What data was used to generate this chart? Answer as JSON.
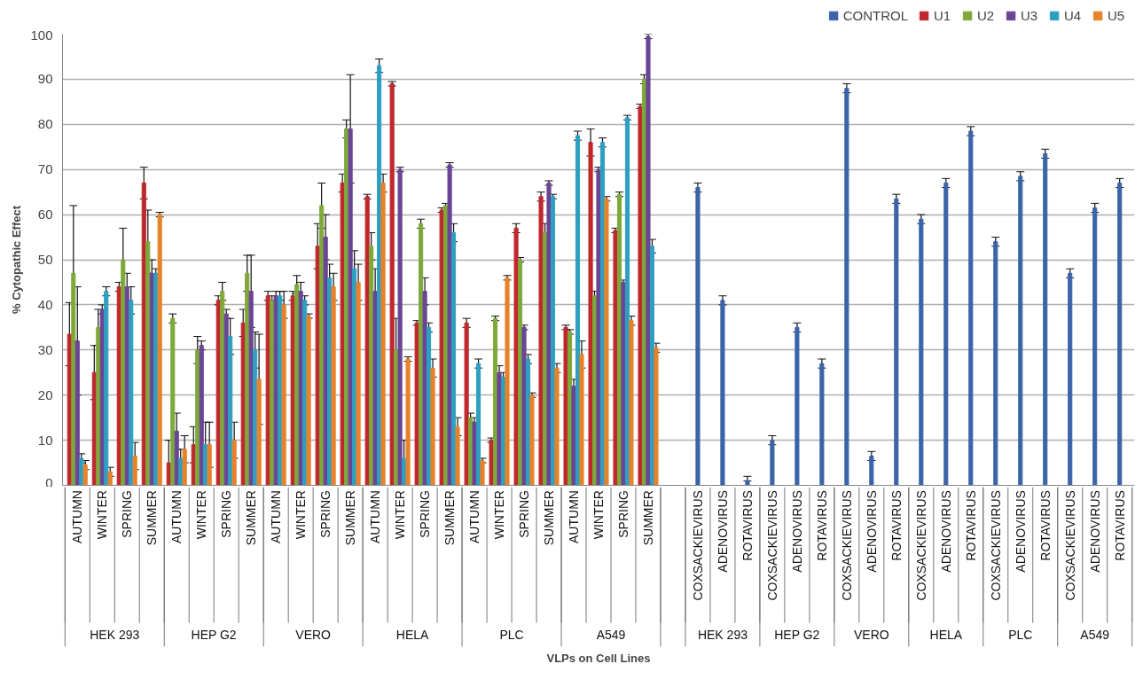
{
  "chart_data": {
    "type": "bar",
    "xlabel": "VLPs on Cell Lines",
    "ylabel": "% Cytopathic Effect",
    "categories": [
      "AUTUMN",
      "WINTER",
      "SPRING",
      "SUMMER",
      "AUTUMN",
      "WINTER",
      "SPRING",
      "SUMMER",
      "AUTUMN",
      "WINTER",
      "SPRING",
      "SUMMER",
      "AUTUMN",
      "WINTER",
      "SPRING",
      "SUMMER",
      "AUTUMN",
      "WINTER",
      "SPRING",
      "SUMMER",
      "AUTUMN",
      "WINTER",
      "SPRING",
      "SUMMER",
      null,
      "COXSACKIEVIRUS",
      "ADENOVIRUS",
      "ROTAVIRUS",
      "COXSACKIEVIRUS",
      "ADENOVIRUS",
      "ROTAVIRUS",
      "COXSACKIEVIRUS",
      "ADENOVIRUS",
      "ROTAVIRUS",
      "COXSACKIEVIRUS",
      "ADENOVIRUS",
      "ROTAVIRUS",
      "COXSACKIEVIRUS",
      "ADENOVIRUS",
      "ROTAVIRUS",
      "COXSACKIEVIRUS",
      "ADENOVIRUS",
      "ROTAVIRUS"
    ],
    "annotations": [
      "HEK 293",
      "HEP G2",
      "VERO",
      "HELA",
      "PLC",
      "A549",
      "HEK 293",
      "HEP G2",
      "VERO",
      "HELA",
      "PLC",
      "A549"
    ],
    "series": [
      {
        "name": "CONTROL",
        "color": "#3b64a8",
        "values": [
          null,
          null,
          null,
          null,
          null,
          null,
          null,
          null,
          null,
          null,
          null,
          null,
          null,
          null,
          null,
          null,
          null,
          null,
          null,
          null,
          null,
          null,
          null,
          null,
          null,
          66,
          41,
          1,
          10,
          35,
          27,
          88,
          6.5,
          63.5,
          59,
          67,
          78.5,
          54,
          68.5,
          73.5,
          47,
          61.5,
          67
        ],
        "errors": [
          null,
          null,
          null,
          null,
          null,
          null,
          null,
          null,
          null,
          null,
          null,
          null,
          null,
          null,
          null,
          null,
          null,
          null,
          null,
          null,
          null,
          null,
          null,
          null,
          null,
          1,
          1,
          [
            1,
            2
          ],
          1,
          1,
          1,
          1,
          1,
          1,
          1,
          1,
          1,
          1,
          1,
          1,
          1,
          1,
          1
        ]
      },
      {
        "name": "U1",
        "color": "#c0282d",
        "values": [
          33.5,
          25,
          44,
          67,
          5,
          9,
          41,
          36,
          42,
          42,
          53,
          67,
          64,
          89,
          36,
          61,
          36,
          10,
          57,
          64,
          35,
          76,
          56.5,
          84,
          null,
          null,
          null,
          null,
          null,
          null,
          null,
          null,
          null,
          null,
          null,
          null,
          null,
          null,
          null,
          null,
          null,
          null,
          null
        ],
        "errors": [
          7,
          6,
          1,
          3.5,
          5,
          4,
          1,
          3,
          1,
          1,
          5,
          2,
          0.5,
          0.5,
          0.5,
          0.5,
          1,
          0.5,
          1,
          1,
          0.5,
          3,
          0.5,
          0.5,
          null,
          null,
          null,
          null,
          null,
          null,
          null,
          null,
          null,
          null,
          null,
          null,
          null,
          null,
          null,
          null,
          null,
          null,
          null
        ]
      },
      {
        "name": "U2",
        "color": "#7fa83a",
        "values": [
          47,
          35,
          50,
          54,
          37,
          30,
          43,
          47,
          41,
          44.5,
          62,
          79,
          53,
          30,
          58,
          62,
          15,
          37,
          50,
          56,
          34,
          42,
          64.5,
          90,
          null,
          null,
          null,
          null,
          null,
          null,
          null,
          null,
          null,
          null,
          null,
          null,
          null,
          null,
          null,
          null,
          null,
          null,
          null
        ],
        "errors": [
          15,
          4,
          7,
          7,
          1,
          3,
          2,
          4,
          1,
          2,
          5,
          2,
          3,
          7,
          1,
          0.5,
          1,
          0.5,
          0.5,
          2,
          0.5,
          1,
          0.5,
          1,
          null,
          null,
          null,
          null,
          null,
          null,
          null,
          null,
          null,
          null,
          null,
          null,
          null,
          null,
          null,
          null,
          null,
          null,
          null
        ]
      },
      {
        "name": "U3",
        "color": "#6a4595",
        "values": [
          32,
          39,
          44,
          47,
          12,
          31,
          38,
          43,
          42,
          43,
          55,
          79,
          43,
          70,
          43,
          71,
          14,
          25,
          35,
          67,
          22,
          70,
          45,
          99.5,
          null,
          null,
          null,
          null,
          null,
          null,
          null,
          null,
          null,
          null,
          null,
          null,
          null,
          null,
          null,
          null,
          null,
          null,
          null
        ],
        "errors": [
          12,
          1,
          3,
          3,
          4,
          1,
          1,
          8,
          1,
          2,
          5,
          12,
          5,
          0.5,
          3,
          0.5,
          1,
          1.5,
          0.5,
          0.5,
          1.5,
          0.5,
          0.5,
          0.5,
          null,
          null,
          null,
          null,
          null,
          null,
          null,
          null,
          null,
          null,
          null,
          null,
          null,
          null,
          null,
          null,
          null,
          null,
          null
        ]
      },
      {
        "name": "U4",
        "color": "#2e9fc0",
        "values": [
          6,
          43,
          41,
          47,
          6,
          9,
          33,
          30,
          42,
          41,
          46,
          48,
          93,
          6,
          35,
          56,
          27,
          24,
          28,
          64,
          77.5,
          76,
          81.5,
          53,
          null,
          null,
          null,
          null,
          null,
          null,
          null,
          null,
          null,
          null,
          null,
          null,
          null,
          null,
          null,
          null,
          null,
          null,
          null
        ],
        "errors": [
          1,
          1,
          3,
          1,
          2,
          5,
          4,
          4,
          1,
          1,
          3,
          4,
          1.5,
          4,
          1,
          2,
          1,
          1,
          1,
          0.5,
          1,
          1,
          0.5,
          1.5,
          null,
          null,
          null,
          null,
          null,
          null,
          null,
          null,
          null,
          null,
          null,
          null,
          null,
          null,
          null,
          null,
          null,
          null,
          null
        ]
      },
      {
        "name": "U5",
        "color": "#e8822a",
        "values": [
          4.5,
          3,
          6.5,
          60,
          8,
          9,
          10,
          23.5,
          40,
          37.5,
          44,
          45,
          67,
          28,
          26,
          13,
          5.5,
          46,
          20,
          26,
          29,
          63.5,
          36.5,
          30.5,
          null,
          null,
          null,
          null,
          null,
          null,
          null,
          null,
          null,
          null,
          null,
          null,
          null,
          null,
          null,
          null,
          null,
          null,
          null
        ],
        "errors": [
          1,
          1,
          3,
          0.5,
          3,
          5,
          4,
          10,
          3,
          0.5,
          3,
          4,
          2,
          0.5,
          2,
          2,
          0.5,
          0.5,
          0.5,
          1,
          3,
          0.5,
          1,
          1,
          null,
          null,
          null,
          null,
          null,
          null,
          null,
          null,
          null,
          null,
          null,
          null,
          null,
          null,
          null,
          null,
          null,
          null,
          null
        ]
      }
    ],
    "ylim": [
      0,
      100
    ],
    "yticks": [
      0,
      10,
      20,
      30,
      40,
      50,
      60,
      70,
      80,
      90,
      100
    ],
    "grid": "y",
    "legend": "top right"
  }
}
